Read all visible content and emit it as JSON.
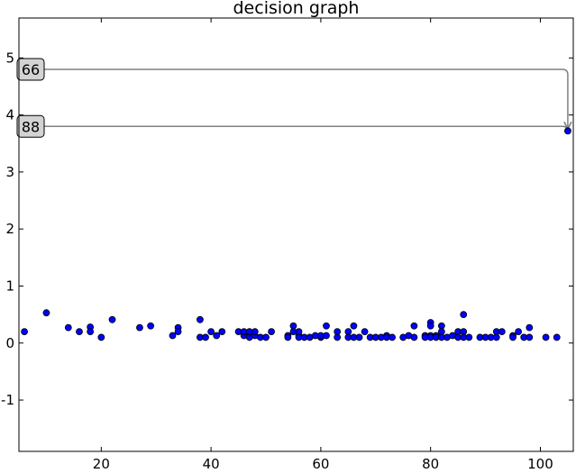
{
  "chart_data": {
    "type": "scatter",
    "title": "decision graph",
    "xlabel": "",
    "ylabel": "",
    "xlim": [
      5,
      106
    ],
    "ylim": [
      -1.9,
      5.7
    ],
    "xticks": [
      20,
      40,
      60,
      80,
      100
    ],
    "yticks": [
      -1,
      0,
      1,
      2,
      3,
      4,
      5
    ],
    "grid": false,
    "marker_color": "#0000ff",
    "marker_edge": "#000000",
    "points": [
      [
        6,
        0.2
      ],
      [
        10,
        0.53
      ],
      [
        14,
        0.27
      ],
      [
        16,
        0.2
      ],
      [
        18,
        0.28
      ],
      [
        18,
        0.2
      ],
      [
        20,
        0.1
      ],
      [
        22,
        0.41
      ],
      [
        27,
        0.27
      ],
      [
        29,
        0.3
      ],
      [
        33,
        0.13
      ],
      [
        34,
        0.27
      ],
      [
        34,
        0.2
      ],
      [
        38,
        0.41
      ],
      [
        38,
        0.1
      ],
      [
        39,
        0.1
      ],
      [
        40,
        0.2
      ],
      [
        41,
        0.13
      ],
      [
        42,
        0.2
      ],
      [
        45,
        0.2
      ],
      [
        46,
        0.13
      ],
      [
        46,
        0.2
      ],
      [
        47,
        0.1
      ],
      [
        47,
        0.2
      ],
      [
        48,
        0.13
      ],
      [
        48,
        0.2
      ],
      [
        49,
        0.1
      ],
      [
        50,
        0.1
      ],
      [
        51,
        0.2
      ],
      [
        54,
        0.13
      ],
      [
        54,
        0.1
      ],
      [
        55,
        0.3
      ],
      [
        55,
        0.2
      ],
      [
        56,
        0.13
      ],
      [
        56,
        0.2
      ],
      [
        56,
        0.1
      ],
      [
        57,
        0.1
      ],
      [
        58,
        0.1
      ],
      [
        59,
        0.13
      ],
      [
        60,
        0.1
      ],
      [
        60,
        0.13
      ],
      [
        61,
        0.3
      ],
      [
        61,
        0.13
      ],
      [
        63,
        0.2
      ],
      [
        63,
        0.1
      ],
      [
        65,
        0.2
      ],
      [
        65,
        0.1
      ],
      [
        66,
        0.3
      ],
      [
        66,
        0.1
      ],
      [
        67,
        0.1
      ],
      [
        68,
        0.2
      ],
      [
        69,
        0.1
      ],
      [
        70,
        0.1
      ],
      [
        71,
        0.1
      ],
      [
        72,
        0.13
      ],
      [
        72,
        0.1
      ],
      [
        73,
        0.1
      ],
      [
        75,
        0.1
      ],
      [
        76,
        0.13
      ],
      [
        77,
        0.3
      ],
      [
        77,
        0.1
      ],
      [
        79,
        0.13
      ],
      [
        79,
        0.1
      ],
      [
        80,
        0.36
      ],
      [
        80,
        0.3
      ],
      [
        80,
        0.13
      ],
      [
        80,
        0.1
      ],
      [
        81,
        0.13
      ],
      [
        81,
        0.1
      ],
      [
        82,
        0.3
      ],
      [
        82,
        0.2
      ],
      [
        82,
        0.1
      ],
      [
        83,
        0.1
      ],
      [
        84,
        0.13
      ],
      [
        85,
        0.2
      ],
      [
        85,
        0.1
      ],
      [
        86,
        0.5
      ],
      [
        86,
        0.2
      ],
      [
        86,
        0.1
      ],
      [
        87,
        0.1
      ],
      [
        89,
        0.1
      ],
      [
        90,
        0.1
      ],
      [
        91,
        0.1
      ],
      [
        92,
        0.2
      ],
      [
        92,
        0.1
      ],
      [
        93,
        0.2
      ],
      [
        95,
        0.13
      ],
      [
        95,
        0.1
      ],
      [
        96,
        0.2
      ],
      [
        97,
        0.1
      ],
      [
        98,
        0.27
      ],
      [
        98,
        0.1
      ],
      [
        101,
        0.1
      ],
      [
        103,
        0.1
      ],
      [
        105,
        3.72
      ]
    ],
    "annotations": [
      {
        "text": "66",
        "box_y": 4.8,
        "target": [
          105,
          3.72
        ]
      },
      {
        "text": "88",
        "box_y": 3.8,
        "target": [
          105,
          3.72
        ]
      }
    ]
  }
}
